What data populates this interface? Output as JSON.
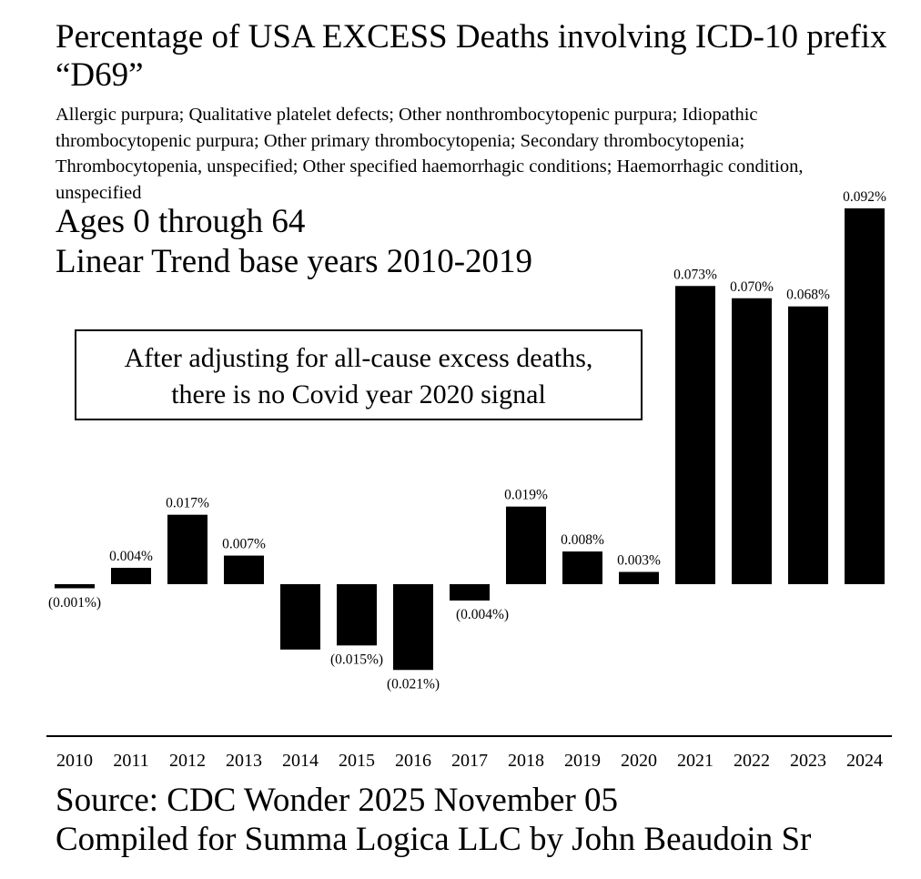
{
  "chart_data": {
    "type": "bar",
    "title": "Percentage of USA EXCESS Deaths involving ICD-10 prefix “D69”",
    "subtitle": "Allergic purpura; Qualitative platelet defects; Other nonthrombocytopenic purpura; Idiopathic thrombocytopenic purpura; Other primary thrombocytopenia; Secondary thrombocytopenia; Thrombocytopenia, unspecified; Other specified haemorrhagic conditions; Haemorrhagic condition, unspecified",
    "ages": "Ages 0 through 64",
    "trend": "Linear Trend base years 2010-2019",
    "annotation_line1": "After adjusting for all-cause excess deaths,",
    "annotation_line2": "there is no Covid year 2020 signal",
    "categories": [
      "2010",
      "2011",
      "2012",
      "2013",
      "2014",
      "2015",
      "2016",
      "2017",
      "2018",
      "2019",
      "2020",
      "2021",
      "2022",
      "2023",
      "2024"
    ],
    "values": [
      -0.001,
      0.004,
      0.017,
      0.007,
      -0.016,
      -0.015,
      -0.021,
      -0.004,
      0.019,
      0.008,
      0.003,
      0.073,
      0.07,
      0.068,
      0.092
    ],
    "labels": [
      "(0.001%)",
      "0.004%",
      "0.017%",
      "0.007%",
      "",
      "(0.015%)",
      "(0.021%)",
      "(0.004%)",
      "0.019%",
      "0.008%",
      "0.003%",
      "0.073%",
      "0.070%",
      "0.068%",
      "0.092%"
    ],
    "unit": "%",
    "xlabel": "",
    "ylabel": "",
    "ylim": [
      -0.021,
      0.092
    ],
    "bar_color": "#000000",
    "source": "Source: CDC Wonder 2025 November 05",
    "credit": "Compiled for Summa Logica LLC by John Beaudoin Sr"
  }
}
